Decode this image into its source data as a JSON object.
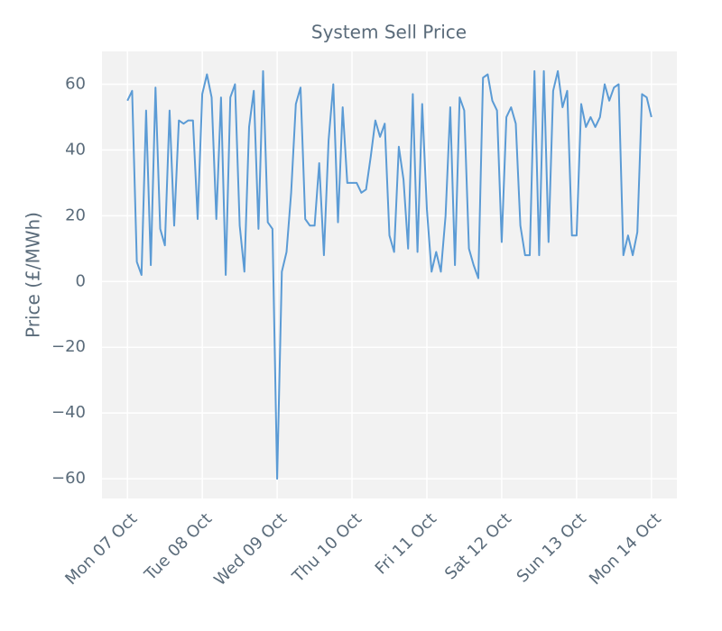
{
  "chart_data": {
    "type": "line",
    "title": "System Sell Price",
    "y_label": "Price (£/MWh)",
    "x": [
      0,
      0.0625,
      0.125,
      0.1875,
      0.25,
      0.3125,
      0.375,
      0.4375,
      0.5,
      0.5625,
      0.625,
      0.6875,
      0.75,
      0.8125,
      0.875,
      0.9375,
      1,
      1.0625,
      1.125,
      1.1875,
      1.25,
      1.3125,
      1.375,
      1.4375,
      1.5,
      1.5625,
      1.625,
      1.6875,
      1.75,
      1.8125,
      1.875,
      1.9375,
      2,
      2.0625,
      2.125,
      2.1875,
      2.25,
      2.3125,
      2.375,
      2.4375,
      2.5,
      2.5625,
      2.625,
      2.6875,
      2.75,
      2.8125,
      2.875,
      2.9375,
      3,
      3.0625,
      3.125,
      3.1875,
      3.25,
      3.3125,
      3.375,
      3.4375,
      3.5,
      3.5625,
      3.625,
      3.6875,
      3.75,
      3.8125,
      3.875,
      3.9375,
      4,
      4.0625,
      4.125,
      4.1875,
      4.25,
      4.3125,
      4.375,
      4.4375,
      4.5,
      4.5625,
      4.625,
      4.6875,
      4.75,
      4.8125,
      4.875,
      4.9375,
      5,
      5.0625,
      5.125,
      5.1875,
      5.25,
      5.3125,
      5.375,
      5.4375,
      5.5,
      5.5625,
      5.625,
      5.6875,
      5.75,
      5.8125,
      5.875,
      5.9375,
      6,
      6.0625,
      6.125,
      6.1875,
      6.25,
      6.3125,
      6.375,
      6.4375,
      6.5,
      6.5625,
      6.625,
      6.6875,
      6.75,
      6.8125,
      6.875,
      6.9375,
      7
    ],
    "series": [
      {
        "name": "System Sell Price",
        "color": "#5b9bd5",
        "values": [
          55,
          58,
          6,
          2,
          52,
          5,
          59,
          16,
          11,
          52,
          17,
          49,
          48,
          49,
          49,
          19,
          57,
          63,
          56,
          19,
          56,
          2,
          56,
          60,
          17,
          3,
          47,
          58,
          16,
          64,
          18,
          16,
          -60,
          3,
          9,
          27,
          54,
          59,
          19,
          17,
          17,
          36,
          8,
          43,
          60,
          18,
          53,
          30,
          30,
          30,
          27,
          28,
          38,
          49,
          44,
          48,
          14,
          9,
          41,
          31,
          10,
          57,
          9,
          54,
          22,
          3,
          9,
          3,
          20,
          53,
          5,
          56,
          52,
          10,
          5,
          1,
          62,
          63,
          55,
          52,
          12,
          50,
          53,
          48,
          17,
          8,
          8,
          64,
          8,
          64,
          12,
          58,
          64,
          53,
          58,
          14,
          14,
          54,
          47,
          50,
          47,
          50,
          60,
          55,
          59,
          60,
          8,
          14,
          8,
          15,
          57,
          56,
          50
        ]
      }
    ],
    "xlim": [
      -0.34,
      7.34
    ],
    "xticks": [
      {
        "value": 0,
        "label": "Mon 07 Oct"
      },
      {
        "value": 1,
        "label": "Tue 08 Oct"
      },
      {
        "value": 2,
        "label": "Wed 09 Oct"
      },
      {
        "value": 3,
        "label": "Thu 10 Oct"
      },
      {
        "value": 4,
        "label": "Fri 11 Oct"
      },
      {
        "value": 5,
        "label": "Sat 12 Oct"
      },
      {
        "value": 6,
        "label": "Sun 13 Oct"
      },
      {
        "value": 7,
        "label": "Mon 14 Oct"
      }
    ],
    "ylim": [
      -66,
      70
    ],
    "yticks": [
      {
        "value": -60,
        "label": "−60"
      },
      {
        "value": -40,
        "label": "−40"
      },
      {
        "value": -20,
        "label": "−20"
      },
      0,
      20,
      40,
      60
    ],
    "grid": true
  }
}
